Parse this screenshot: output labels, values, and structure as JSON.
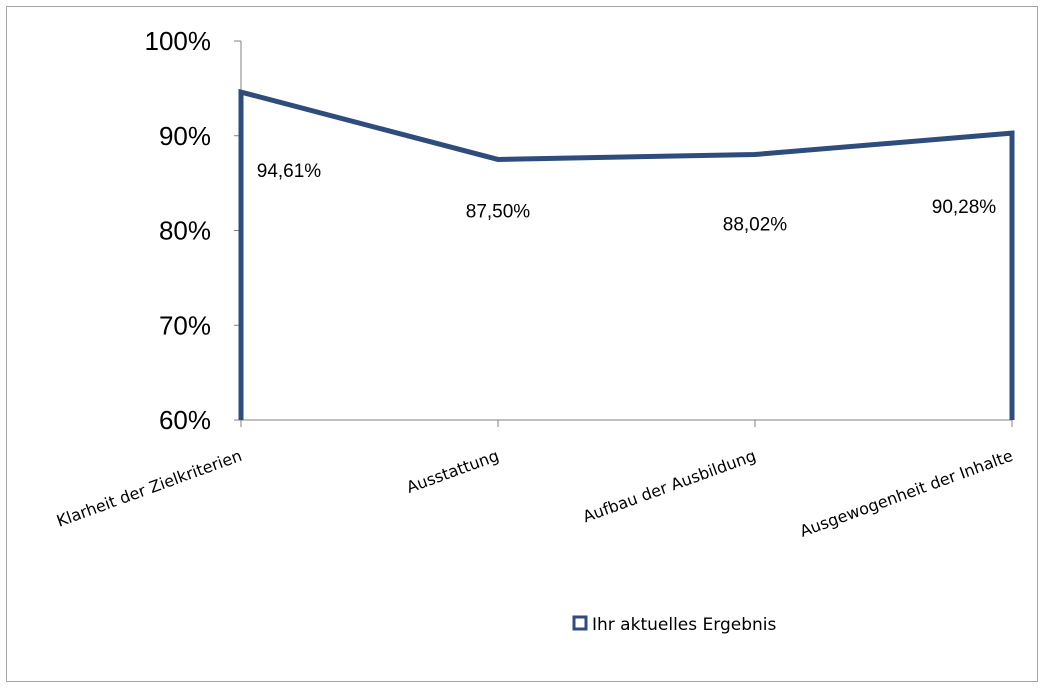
{
  "chart_data": {
    "type": "area",
    "categories": [
      "Klarheit der Zielkriterien",
      "Ausstattung",
      "Aufbau der Ausbildung",
      "Ausgewogenheit der Inhalte"
    ],
    "series": [
      {
        "name": "Ihr aktuelles Ergebnis",
        "values": [
          94.61,
          87.5,
          88.02,
          90.28
        ]
      }
    ],
    "data_labels": [
      "94,61%",
      "87,50%",
      "88,02%",
      "90,28%"
    ],
    "yticks": [
      "60%",
      "70%",
      "80%",
      "90%",
      "100%"
    ],
    "ylim": [
      60,
      100
    ],
    "color": "#2e4d7d",
    "fill": "none",
    "grid": false,
    "legend_position": "bottom"
  }
}
